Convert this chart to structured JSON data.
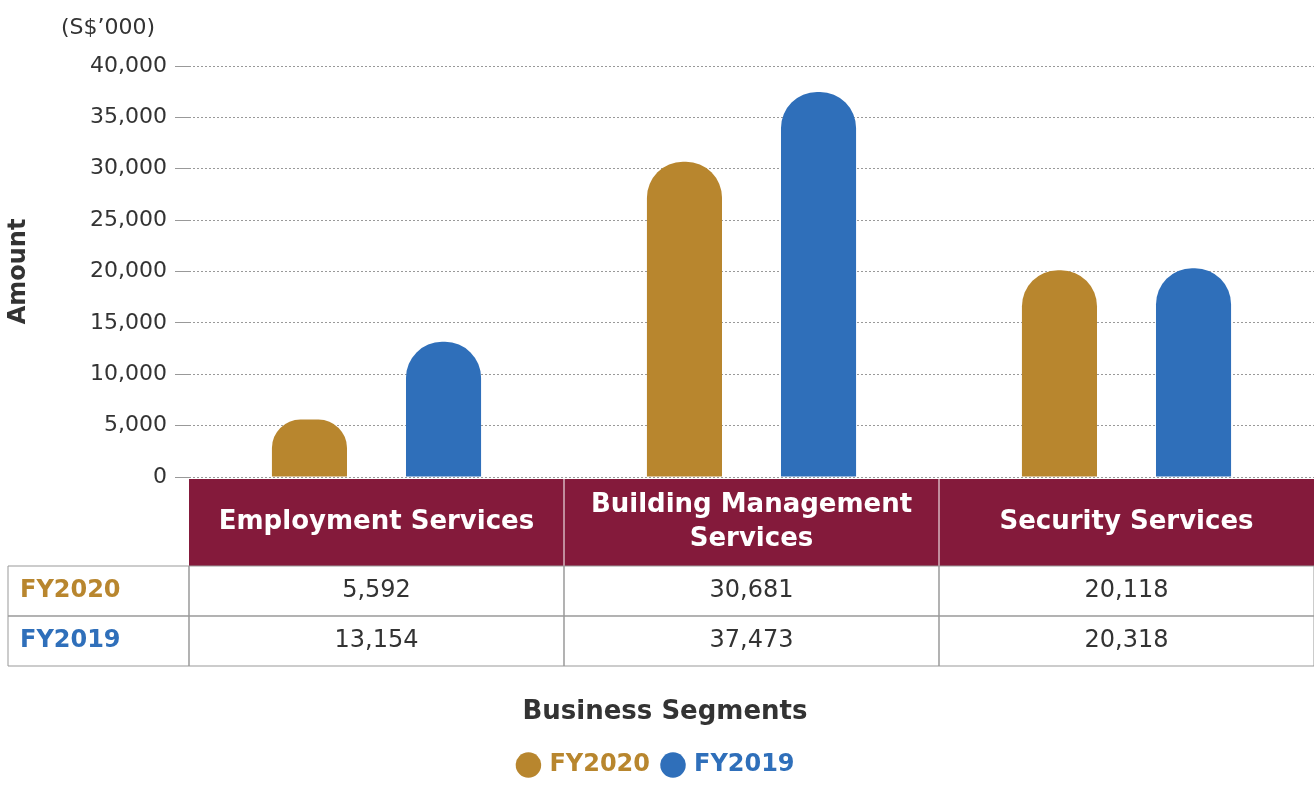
{
  "chart_data": {
    "type": "bar",
    "categories": [
      "Employment Services",
      "Building Management Services",
      "Security Services"
    ],
    "series": [
      {
        "name": "FY2020",
        "color": "#b8862e",
        "values": [
          5592,
          30681,
          20118
        ],
        "value_labels": [
          "5,592",
          "30,681",
          "20,118"
        ]
      },
      {
        "name": "FY2019",
        "color": "#2f6fba",
        "values": [
          13154,
          37473,
          20318
        ],
        "value_labels": [
          "13,154",
          "37,473",
          "20,318"
        ]
      }
    ],
    "ylabel": "Amount",
    "annotations": [
      "(S$’000)",
      "Business Segments"
    ],
    "ylim": [
      0,
      40000
    ],
    "yticks": [
      {
        "value": 0,
        "label": "0"
      },
      {
        "value": 5000,
        "label": "5,000"
      },
      {
        "value": 10000,
        "label": "10,000"
      },
      {
        "value": 15000,
        "label": "15,000"
      },
      {
        "value": 20000,
        "label": "20,000"
      },
      {
        "value": 25000,
        "label": "25,000"
      },
      {
        "value": 30000,
        "label": "30,000"
      },
      {
        "value": 35000,
        "label": "35,000"
      },
      {
        "value": 40000,
        "label": "40,000"
      }
    ],
    "grid": "y",
    "legend": "bottom"
  }
}
